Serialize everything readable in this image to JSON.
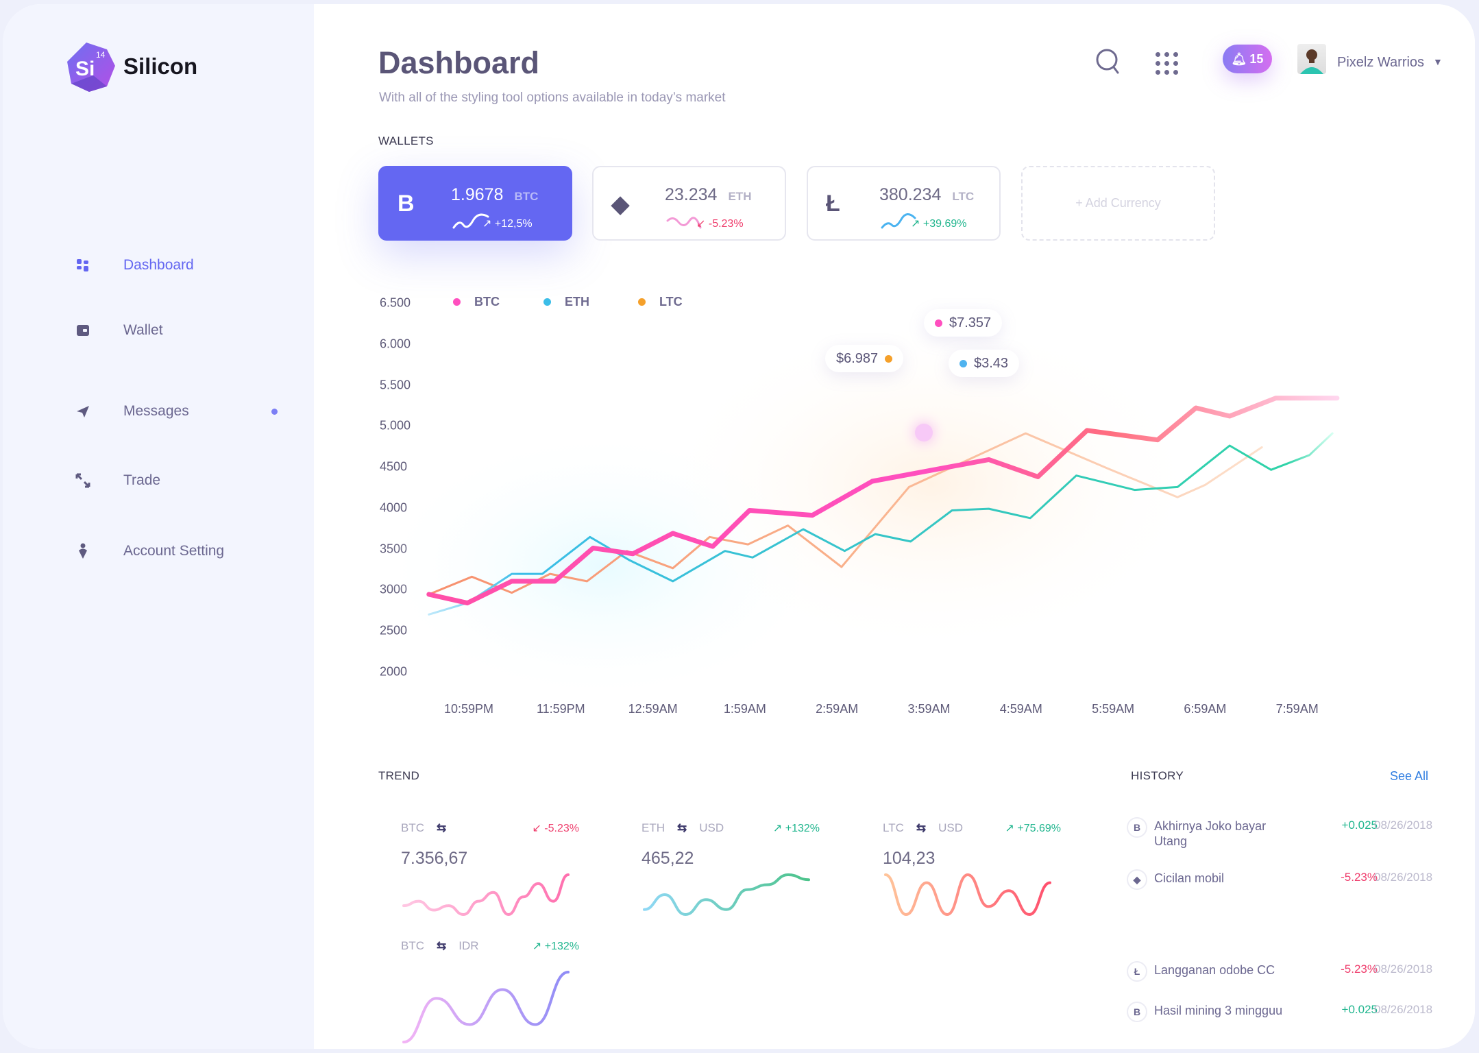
{
  "brand": {
    "name": "Silicon",
    "symbol": "Si",
    "number": "14"
  },
  "sidebar": {
    "items": [
      {
        "label": "Dashboard",
        "icon": "dashboard-icon",
        "active": true
      },
      {
        "label": "Wallet",
        "icon": "wallet-icon"
      },
      {
        "label": "Messages",
        "icon": "send-icon",
        "badge_dot": true
      },
      {
        "label": "Trade",
        "icon": "arrows-icon"
      },
      {
        "label": "Account Setting",
        "icon": "user-pin-icon"
      }
    ]
  },
  "header": {
    "title": "Dashboard",
    "subtitle": "With all of the styling tool options available in today’s market",
    "notifications": "15",
    "user_name": "Pixelz Warrios"
  },
  "wallets": {
    "title": "WALLETS",
    "cards": [
      {
        "icon": "bitcoin-icon",
        "glyph": "B",
        "value": "1.9678",
        "unit": "BTC",
        "change": "+12,5%",
        "direction": "up"
      },
      {
        "icon": "ethereum-icon",
        "glyph": "◆",
        "value": "23.234",
        "unit": "ETH",
        "change": "-5.23%",
        "direction": "down"
      },
      {
        "icon": "litecoin-icon",
        "glyph": "Ł",
        "value": "380.234",
        "unit": "LTC",
        "change": "+39.69%",
        "direction": "up"
      }
    ],
    "add_label": "+ Add Currency"
  },
  "colors": {
    "accent": "#6467f2",
    "btc": "#ff4fbf",
    "eth": "#3bbde8",
    "ltc": "#f5a02a",
    "positive": "#1fb58d",
    "negative": "#ef3d6c",
    "link": "#2f7de1"
  },
  "chart_data": {
    "type": "line",
    "ylim": [
      2000,
      6500
    ],
    "yticks": [
      "6.500",
      "6.000",
      "5.500",
      "5.000",
      "4500",
      "4000",
      "3500",
      "3000",
      "2500",
      "2000"
    ],
    "xticks": [
      "10:59PM",
      "11:59PM",
      "12:59AM",
      "1:59AM",
      "2:59AM",
      "3:59AM",
      "4:59AM",
      "5:59AM",
      "6:59AM",
      "7:59AM"
    ],
    "legend_position": "top-left",
    "grid": false,
    "series": [
      {
        "name": "BTC",
        "color": "#ff4fbf",
        "points": [
          [
            "10:33PM",
            2945
          ],
          [
            "10:58PM",
            2840
          ],
          [
            "11:27PM",
            3105
          ],
          [
            "11:55PM",
            3105
          ],
          [
            "12:20AM",
            3510
          ],
          [
            "12:46AM",
            3440
          ],
          [
            "1:12AM",
            3690
          ],
          [
            "1:38AM",
            3530
          ],
          [
            "2:02AM",
            3970
          ],
          [
            "2:43AM",
            3910
          ],
          [
            "3:22AM",
            4325
          ],
          [
            "4:38AM",
            4590
          ],
          [
            "5:10AM",
            4380
          ],
          [
            "5:42AM",
            4945
          ],
          [
            "6:28AM",
            4830
          ],
          [
            "6:53AM",
            5220
          ],
          [
            "7:15AM",
            5120
          ],
          [
            "7:45AM",
            5340
          ],
          [
            "8:25AM",
            5340
          ]
        ]
      },
      {
        "name": "ETH",
        "color": "#3bbde8",
        "points": [
          [
            "10:33PM",
            2700
          ],
          [
            "10:58PM",
            2840
          ],
          [
            "11:27PM",
            3195
          ],
          [
            "11:47PM",
            3195
          ],
          [
            "12:18AM",
            3645
          ],
          [
            "12:44AM",
            3360
          ],
          [
            "1:12AM",
            3105
          ],
          [
            "1:46AM",
            3475
          ],
          [
            "2:04AM",
            3395
          ],
          [
            "2:37AM",
            3740
          ],
          [
            "3:04AM",
            3475
          ],
          [
            "3:24AM",
            3680
          ],
          [
            "3:47AM",
            3590
          ],
          [
            "4:14AM",
            3970
          ],
          [
            "4:38AM",
            3990
          ],
          [
            "5:05AM",
            3875
          ],
          [
            "5:35AM",
            4395
          ],
          [
            "6:13AM",
            4220
          ],
          [
            "6:41AM",
            4255
          ],
          [
            "7:15AM",
            4760
          ],
          [
            "7:42AM",
            4465
          ],
          [
            "8:07AM",
            4645
          ],
          [
            "8:22AM",
            4910
          ]
        ]
      },
      {
        "name": "LTC",
        "color": "#f5a02a",
        "points": [
          [
            "10:33PM",
            2945
          ],
          [
            "11:01PM",
            3160
          ],
          [
            "11:27PM",
            2965
          ],
          [
            "11:52PM",
            3195
          ],
          [
            "12:16AM",
            3105
          ],
          [
            "12:42AM",
            3475
          ],
          [
            "1:12AM",
            3265
          ],
          [
            "1:36AM",
            3645
          ],
          [
            "2:01AM",
            3555
          ],
          [
            "2:27AM",
            3785
          ],
          [
            "3:02AM",
            3280
          ],
          [
            "3:46AM",
            4255
          ],
          [
            "5:02AM",
            4910
          ],
          [
            "5:55AM",
            4485
          ],
          [
            "6:41AM",
            4130
          ],
          [
            "6:59AM",
            4280
          ],
          [
            "7:36AM",
            4740
          ]
        ]
      }
    ],
    "tooltips": [
      {
        "series": "BTC",
        "label": "$7.357",
        "color": "#ff4fbf"
      },
      {
        "series": "LTC",
        "label": "$6.987",
        "color": "#f5a02a"
      },
      {
        "series": "ETH",
        "label": "$3.43",
        "color": "#4fb3ef"
      }
    ]
  },
  "trend": {
    "title": "TREND",
    "items": [
      {
        "from": "BTC",
        "to": "",
        "value": "7.356,67",
        "change": "-5.23%",
        "direction": "down",
        "colors": [
          "#ffc7e3",
          "#ff6fae"
        ],
        "spark": [
          3,
          4,
          2,
          3,
          1,
          4,
          6,
          1,
          5,
          8,
          4,
          10
        ]
      },
      {
        "from": "ETH",
        "to": "USD",
        "value": "465,22",
        "change": "+132%",
        "direction": "up",
        "colors": [
          "#8fd8f5",
          "#4cc38a"
        ],
        "spark": [
          2,
          5,
          1,
          4,
          2,
          6,
          7,
          9,
          8
        ]
      },
      {
        "from": "LTC",
        "to": "USD",
        "value": "104,23",
        "change": "+75.69%",
        "direction": "up",
        "colors": [
          "#ffc49a",
          "#ff4f6d"
        ],
        "spark": [
          6,
          1,
          5,
          1,
          6,
          2,
          4,
          1,
          5
        ]
      },
      {
        "from": "BTC",
        "to": "IDR",
        "value": "",
        "change": "+132%",
        "direction": "up",
        "colors": [
          "#f3b4f5",
          "#8f8cf6"
        ],
        "spark": [
          1,
          6,
          3,
          7,
          3,
          9
        ]
      }
    ]
  },
  "history": {
    "title": "HISTORY",
    "see_all": "See All",
    "items": [
      {
        "icon": "bitcoin-icon",
        "glyph": "B",
        "label": "Akhirnya Joko bayar Utang",
        "amount": "+0.025",
        "direction": "up",
        "date": "08/26/2018"
      },
      {
        "icon": "ethereum-icon",
        "glyph": "◆",
        "label": "Cicilan mobil",
        "amount": "-5.23%",
        "direction": "down",
        "date": "08/26/2018"
      },
      {
        "icon": "litecoin-icon",
        "glyph": "Ł",
        "label": "Langganan odobe CC",
        "amount": "-5.23%",
        "direction": "down",
        "date": "08/26/2018"
      },
      {
        "icon": "bitcoin-icon",
        "glyph": "B",
        "label": "Hasil mining 3 mingguu",
        "amount": "+0.025",
        "direction": "up",
        "date": "08/26/2018"
      }
    ]
  }
}
